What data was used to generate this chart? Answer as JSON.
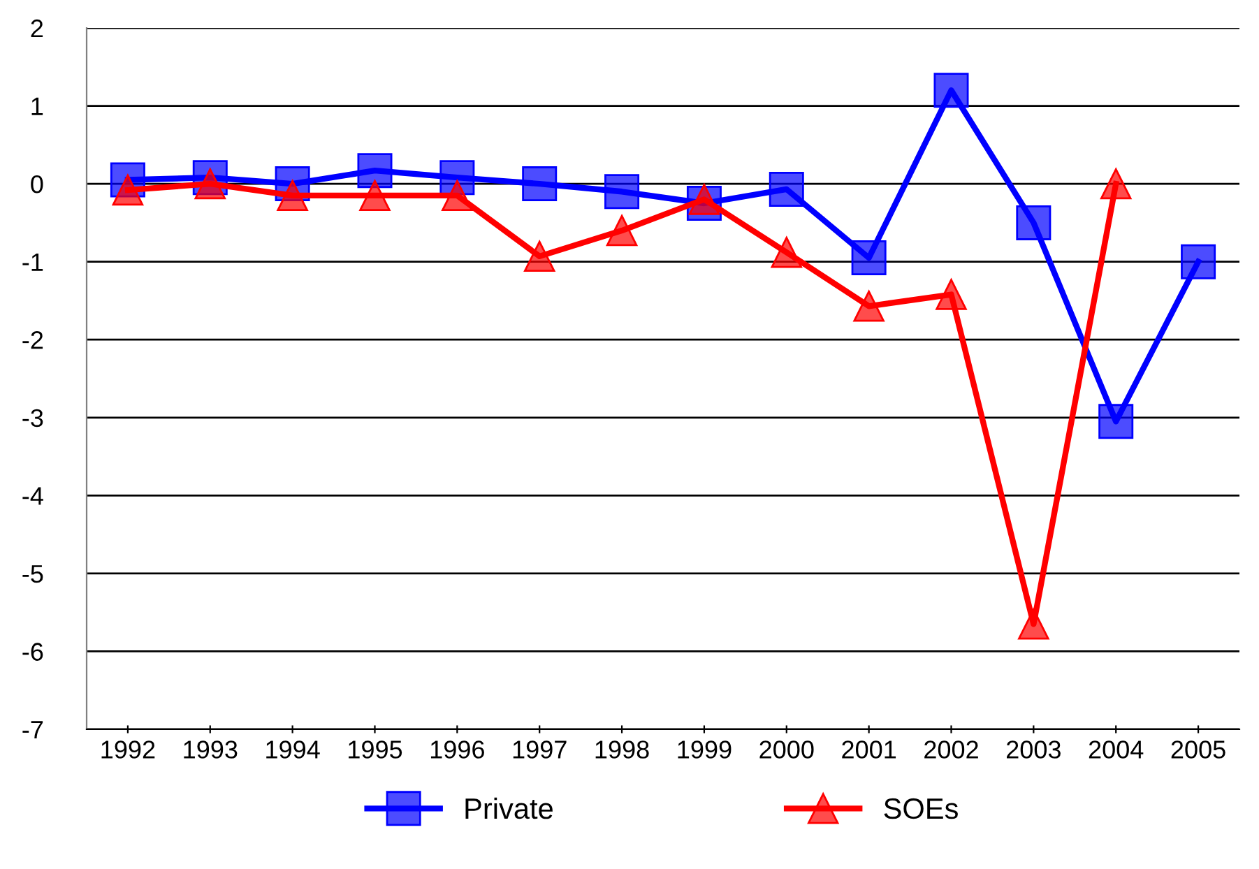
{
  "chart_data": {
    "type": "line",
    "categories": [
      "1992",
      "1993",
      "1994",
      "1995",
      "1996",
      "1997",
      "1998",
      "1999",
      "2000",
      "2001",
      "2002",
      "2003",
      "2004",
      "2005"
    ],
    "series": [
      {
        "name": "Private",
        "color": "#0000ff",
        "marker": "square",
        "values": [
          0.05,
          0.08,
          0.0,
          0.17,
          0.08,
          0.0,
          -0.1,
          -0.25,
          -0.07,
          -0.95,
          1.2,
          -0.5,
          -3.05,
          -1.0
        ]
      },
      {
        "name": "SOEs",
        "color": "#ff0000",
        "marker": "triangle",
        "values": [
          -0.08,
          0.0,
          -0.15,
          -0.15,
          -0.15,
          -0.93,
          -0.6,
          -0.2,
          -0.88,
          -1.57,
          -1.42,
          -5.65,
          0.0,
          null
        ]
      }
    ],
    "ylim": [
      -7,
      2
    ],
    "yticks": [
      -7,
      -6,
      -5,
      -4,
      -3,
      -2,
      -1,
      0,
      1,
      2
    ],
    "grid": "y",
    "legend": "bottom",
    "line_style": "solid"
  }
}
